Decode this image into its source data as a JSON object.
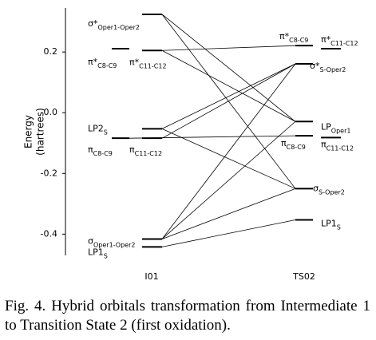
{
  "chart_data": {
    "type": "level-diagram",
    "ylabel": [
      "Energy",
      "(hartrees)"
    ],
    "ylim": [
      -0.47,
      0.345
    ],
    "yticks": [
      -0.4,
      -0.2,
      {
        "value": 0,
        "label": "0.0"
      },
      0.2
    ],
    "color": "#000000",
    "columns": [
      {
        "name": "I01",
        "levels": [
          {
            "label": {
              "main": "σ*",
              "sub": "Oper1-Oper2"
            },
            "energy": 0.324,
            "side": false
          },
          {
            "label": {
              "main": "π*",
              "sub": "C8-C9"
            },
            "energy": 0.211,
            "side": true
          },
          {
            "label": {
              "main": "π*",
              "sub": "C11-C12"
            },
            "energy": 0.205,
            "side": false
          },
          {
            "label": {
              "main": "LP2",
              "sub": "S"
            },
            "energy": -0.053,
            "side": false
          },
          {
            "label": {
              "main": "π",
              "sub": "C8-C9"
            },
            "energy": -0.084,
            "side": true
          },
          {
            "label": {
              "main": "π",
              "sub": "C11-C12"
            },
            "energy": -0.084,
            "side": false
          },
          {
            "label": {
              "main": "σ",
              "sub": "Oper1-Oper2"
            },
            "energy": -0.416,
            "side": false
          },
          {
            "label": {
              "main": "LP1",
              "sub": "S"
            },
            "energy": -0.442,
            "side": false
          }
        ]
      },
      {
        "name": "TS02",
        "levels": [
          {
            "label": {
              "main": "π*",
              "sub": "C8-C9"
            },
            "energy": 0.221,
            "side": false
          },
          {
            "label": {
              "main": "π*",
              "sub": "C11-C12"
            },
            "energy": 0.211,
            "side": true
          },
          {
            "label": {
              "main": "σ*",
              "sub": "S-Oper2"
            },
            "energy": 0.161,
            "side": false
          },
          {
            "label": {
              "main": "LP",
              "sub": "Oper1"
            },
            "energy": -0.029,
            "side": false
          },
          {
            "label": {
              "main": "π",
              "sub": "C8-C9"
            },
            "energy": -0.076,
            "side": false
          },
          {
            "label": {
              "main": "π",
              "sub": "C11-C12"
            },
            "energy": -0.082,
            "side": true
          },
          {
            "label": {
              "main": "σ",
              "sub": "S-Oper2"
            },
            "energy": -0.25,
            "side": false
          },
          {
            "label": {
              "main": "LP1",
              "sub": "S"
            },
            "energy": -0.353,
            "side": false
          }
        ]
      }
    ],
    "connections": [
      [
        0,
        3
      ],
      [
        0,
        6
      ],
      [
        2,
        0
      ],
      [
        2,
        3
      ],
      [
        3,
        2
      ],
      [
        3,
        6
      ],
      [
        5,
        2
      ],
      [
        4,
        4
      ],
      [
        6,
        2
      ],
      [
        6,
        3
      ],
      [
        6,
        6
      ],
      [
        7,
        7
      ]
    ],
    "caption": "Fig. 4. Hybrid orbitals transformation from Intermediate 1 to Transition State 2 (first oxidation)."
  }
}
